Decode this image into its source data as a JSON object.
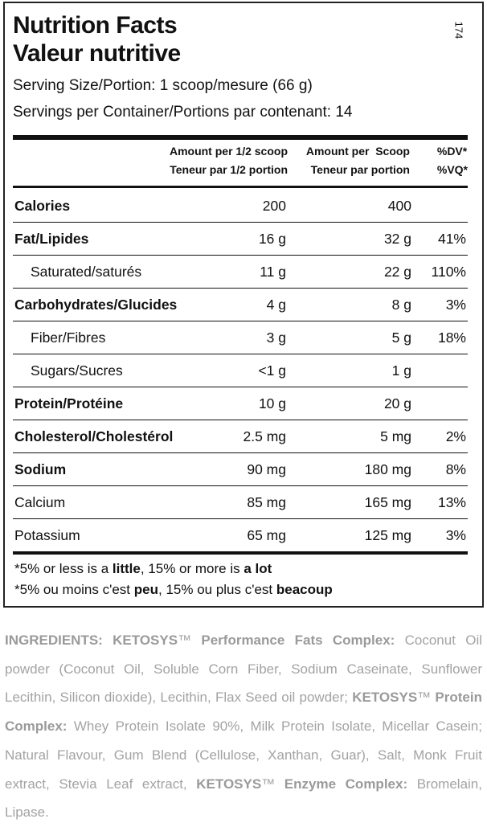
{
  "code": "174",
  "title": [
    "Nutrition Facts",
    "Valeur nutritive"
  ],
  "serving": [
    "Serving Size/Portion: 1 scoop/mesure (66 g)",
    "Servings per Container/Portions par contenant: 14"
  ],
  "table": {
    "headers": [
      [
        "Amount per 1/2 scoop",
        "Teneur par 1/2 portion"
      ],
      [
        "Amount per  Scoop",
        "Teneur par portion"
      ],
      [
        "%DV*",
        "%VQ*"
      ]
    ],
    "rows": [
      [
        "Calories",
        "200",
        "400"
      ],
      [
        "Fat/Lipides",
        "16 g",
        "32 g",
        "41%"
      ],
      [
        "Saturated/saturés",
        "11 g",
        "22 g",
        "110%"
      ],
      [
        "Carbohydrates/Glucides",
        "4 g",
        "8 g",
        "3%"
      ],
      [
        "Fiber/Fibres",
        "3 g",
        "5 g",
        "18%"
      ],
      [
        "Sugars/Sucres",
        "<1 g",
        "1 g"
      ],
      [
        "Protein/Protéine",
        "10 g",
        "20 g"
      ],
      [
        "Cholesterol/Cholestérol",
        "2.5 mg",
        "5 mg",
        "2%"
      ],
      [
        "Sodium",
        "90 mg",
        "180 mg",
        "8%"
      ],
      [
        "Calcium",
        "85 mg",
        "165 mg",
        "13%"
      ],
      [
        "Potassium",
        "65 mg",
        "125 mg",
        "3%"
      ]
    ]
  },
  "footnotes": [
    [
      "*5% or less is a ",
      "little",
      ", 15% or more is ",
      "a lot"
    ],
    [
      "*5% ou moins c'est ",
      "peu",
      ", 15% ou plus c'est ",
      "beacoup"
    ]
  ],
  "ingredients": [
    "INGREDIENTS: KETOSYS",
    "™ ",
    "Performance Fats Complex:",
    " Coconut Oil powder (Coconut Oil, Soluble Corn Fiber, Sodium Caseinate, Sunflower Lecithin, Silicon dioxide), Lecithin, Flax Seed oil powder; ",
    "KETOSYS",
    "™ ",
    "Protein Complex:",
    " Whey Protein Isolate 90%, Milk Protein Isolate, Micellar Casein; Natural Flavour, Gum Blend (Cellulose, Xanthan, Guar), Salt, Monk Fruit extract, Stevia Leaf extract, ",
    "KETOSYS",
    "™ ",
    "Enzyme Complex:",
    " Bromelain, Lipase."
  ]
}
